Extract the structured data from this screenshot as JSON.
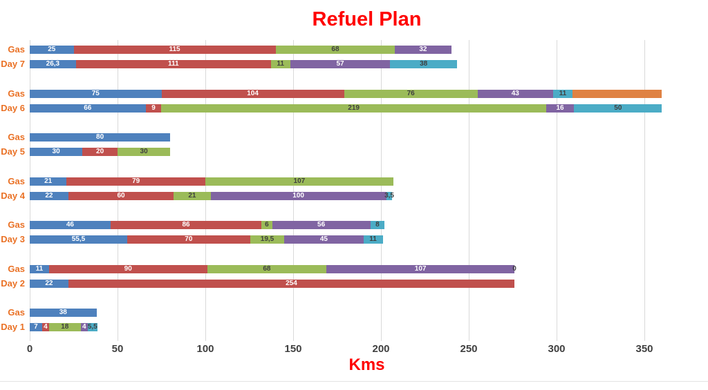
{
  "title": "Refuel Plan",
  "x_axis": {
    "label": "Kms",
    "tick_labels": [
      "0",
      "50",
      "100",
      "150",
      "200",
      "250",
      "300",
      "350"
    ]
  },
  "colors": {
    "title": "#FF0000",
    "axis_label": "#FF0000",
    "category_label": "#EA7125",
    "tick_label": "#404040",
    "gridline": "#D9D9D9",
    "label_light": "#FFFFFF",
    "label_dark": "#3F3F3F"
  },
  "chart_data": {
    "type": "bar",
    "orientation": "horizontal_stacked",
    "title": "Refuel Plan",
    "xlabel": "Kms",
    "x_ticks": [
      0,
      50,
      100,
      150,
      200,
      250,
      300,
      350
    ],
    "xlim": [
      0,
      382
    ],
    "grid": true,
    "legend": "none",
    "series": [
      {
        "id": "s1",
        "color": "#4E81BD",
        "label_style": "light"
      },
      {
        "id": "s2",
        "color": "#C0504D",
        "label_style": "light"
      },
      {
        "id": "s3",
        "color": "#9BBB59",
        "label_style": "dark"
      },
      {
        "id": "s4",
        "color": "#8064A2",
        "label_style": "light"
      },
      {
        "id": "s5",
        "color": "#4BACC6",
        "label_style": "dark"
      },
      {
        "id": "s6",
        "color": "#DF8243",
        "label_style": "dark"
      }
    ],
    "groups": [
      {
        "name": "Day 7",
        "rows": [
          {
            "label": "Gas",
            "segments": [
              {
                "series": "s1",
                "value": 25,
                "label": "25"
              },
              {
                "series": "s2",
                "value": 115,
                "label": "115"
              },
              {
                "series": "s3",
                "value": 68,
                "label": "68"
              },
              {
                "series": "s4",
                "value": 32,
                "label": "32"
              }
            ]
          },
          {
            "label": "Day 7",
            "segments": [
              {
                "series": "s1",
                "value": 26.3,
                "label": "26,3"
              },
              {
                "series": "s2",
                "value": 111,
                "label": "111"
              },
              {
                "series": "s3",
                "value": 11,
                "label": "11"
              },
              {
                "series": "s4",
                "value": 57,
                "label": "57"
              },
              {
                "series": "s5",
                "value": 38,
                "label": "38"
              }
            ]
          }
        ]
      },
      {
        "name": "Day 6",
        "rows": [
          {
            "label": "Gas",
            "segments": [
              {
                "series": "s1",
                "value": 75,
                "label": "75"
              },
              {
                "series": "s2",
                "value": 104,
                "label": "104"
              },
              {
                "series": "s3",
                "value": 76,
                "label": "76"
              },
              {
                "series": "s4",
                "value": 43,
                "label": "43"
              },
              {
                "series": "s5",
                "value": 11,
                "label": "11"
              },
              {
                "series": "s6",
                "value": 51,
                "label": ""
              }
            ]
          },
          {
            "label": "Day 6",
            "segments": [
              {
                "series": "s1",
                "value": 66,
                "label": "66"
              },
              {
                "series": "s2",
                "value": 9,
                "label": "9"
              },
              {
                "series": "s3",
                "value": 219,
                "label": "219"
              },
              {
                "series": "s4",
                "value": 16,
                "label": "16"
              },
              {
                "series": "s5",
                "value": 50,
                "label": "50"
              }
            ]
          }
        ]
      },
      {
        "name": "Day 5",
        "rows": [
          {
            "label": "Gas",
            "segments": [
              {
                "series": "s1",
                "value": 80,
                "label": "80"
              }
            ]
          },
          {
            "label": "Day 5",
            "segments": [
              {
                "series": "s1",
                "value": 30,
                "label": "30"
              },
              {
                "series": "s2",
                "value": 20,
                "label": "20"
              },
              {
                "series": "s3",
                "value": 30,
                "label": "30"
              }
            ]
          }
        ]
      },
      {
        "name": "Day 4",
        "rows": [
          {
            "label": "Gas",
            "segments": [
              {
                "series": "s1",
                "value": 21,
                "label": "21"
              },
              {
                "series": "s2",
                "value": 79,
                "label": "79"
              },
              {
                "series": "s3",
                "value": 107,
                "label": "107"
              }
            ]
          },
          {
            "label": "Day 4",
            "segments": [
              {
                "series": "s1",
                "value": 22,
                "label": "22"
              },
              {
                "series": "s2",
                "value": 60,
                "label": "60"
              },
              {
                "series": "s3",
                "value": 21,
                "label": "21"
              },
              {
                "series": "s4",
                "value": 100,
                "label": "100"
              },
              {
                "series": "s5",
                "value": 3.5,
                "label": "3,5"
              }
            ]
          }
        ]
      },
      {
        "name": "Day 3",
        "rows": [
          {
            "label": "Gas",
            "segments": [
              {
                "series": "s1",
                "value": 46,
                "label": "46"
              },
              {
                "series": "s2",
                "value": 86,
                "label": "86"
              },
              {
                "series": "s3",
                "value": 6,
                "label": "6"
              },
              {
                "series": "s4",
                "value": 56,
                "label": "56"
              },
              {
                "series": "s5",
                "value": 8,
                "label": "8"
              }
            ]
          },
          {
            "label": "Day 3",
            "segments": [
              {
                "series": "s1",
                "value": 55.5,
                "label": "55,5"
              },
              {
                "series": "s2",
                "value": 70,
                "label": "70"
              },
              {
                "series": "s3",
                "value": 19.5,
                "label": "19,5"
              },
              {
                "series": "s4",
                "value": 45,
                "label": "45"
              },
              {
                "series": "s5",
                "value": 11,
                "label": "11"
              }
            ]
          }
        ]
      },
      {
        "name": "Day 2",
        "rows": [
          {
            "label": "Gas",
            "segments": [
              {
                "series": "s1",
                "value": 11,
                "label": "11"
              },
              {
                "series": "s2",
                "value": 90,
                "label": "90"
              },
              {
                "series": "s3",
                "value": 68,
                "label": "68"
              },
              {
                "series": "s4",
                "value": 107,
                "label": "107"
              },
              {
                "series": "s5",
                "value": 0,
                "label": "0"
              }
            ]
          },
          {
            "label": "Day 2",
            "segments": [
              {
                "series": "s1",
                "value": 22,
                "label": "22"
              },
              {
                "series": "s2",
                "value": 254,
                "label": "254"
              }
            ]
          }
        ]
      },
      {
        "name": "Day 1",
        "rows": [
          {
            "label": "Gas",
            "segments": [
              {
                "series": "s1",
                "value": 38,
                "label": "38"
              }
            ]
          },
          {
            "label": "Day 1",
            "segments": [
              {
                "series": "s1",
                "value": 7,
                "label": "7"
              },
              {
                "series": "s2",
                "value": 4,
                "label": "4"
              },
              {
                "series": "s3",
                "value": 18,
                "label": "18"
              },
              {
                "series": "s4",
                "value": 4,
                "label": "4"
              },
              {
                "series": "s5",
                "value": 5.5,
                "label": "5,5"
              }
            ]
          }
        ]
      }
    ]
  }
}
